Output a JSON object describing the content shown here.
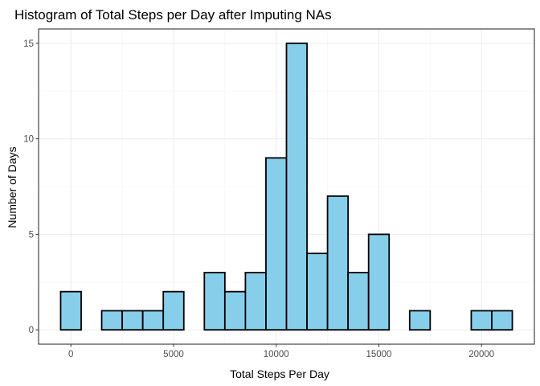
{
  "chart_data": {
    "type": "bar",
    "title": "Histogram of Total Steps per Day after Imputing NAs",
    "xlabel": "Total Steps Per Day",
    "ylabel": "Number of Days",
    "bin_width": 1000,
    "x": [
      0,
      1000,
      2000,
      3000,
      4000,
      5000,
      6000,
      7000,
      8000,
      9000,
      10000,
      11000,
      12000,
      13000,
      14000,
      15000,
      16000,
      17000,
      18000,
      19000,
      20000,
      21000
    ],
    "values": [
      2,
      0,
      1,
      1,
      1,
      2,
      0,
      3,
      2,
      3,
      9,
      15,
      4,
      7,
      3,
      5,
      0,
      1,
      0,
      0,
      1,
      1
    ],
    "xlim": [
      -1575,
      22575
    ],
    "ylim": [
      -0.75,
      15.75
    ],
    "x_ticks": [
      0,
      5000,
      10000,
      15000,
      20000
    ],
    "x_tick_labels": [
      "0",
      "5000",
      "10000",
      "15000",
      "20000"
    ],
    "y_ticks": [
      0,
      5,
      10,
      15
    ],
    "y_tick_labels": [
      "0",
      "5",
      "10",
      "15"
    ],
    "grid": true,
    "colors": {
      "bar_fill": "#87ceeb",
      "bar_stroke": "#000000",
      "grid_major": "#ebebeb",
      "grid_minor": "#f5f5f5",
      "panel_border": "#333333"
    }
  }
}
